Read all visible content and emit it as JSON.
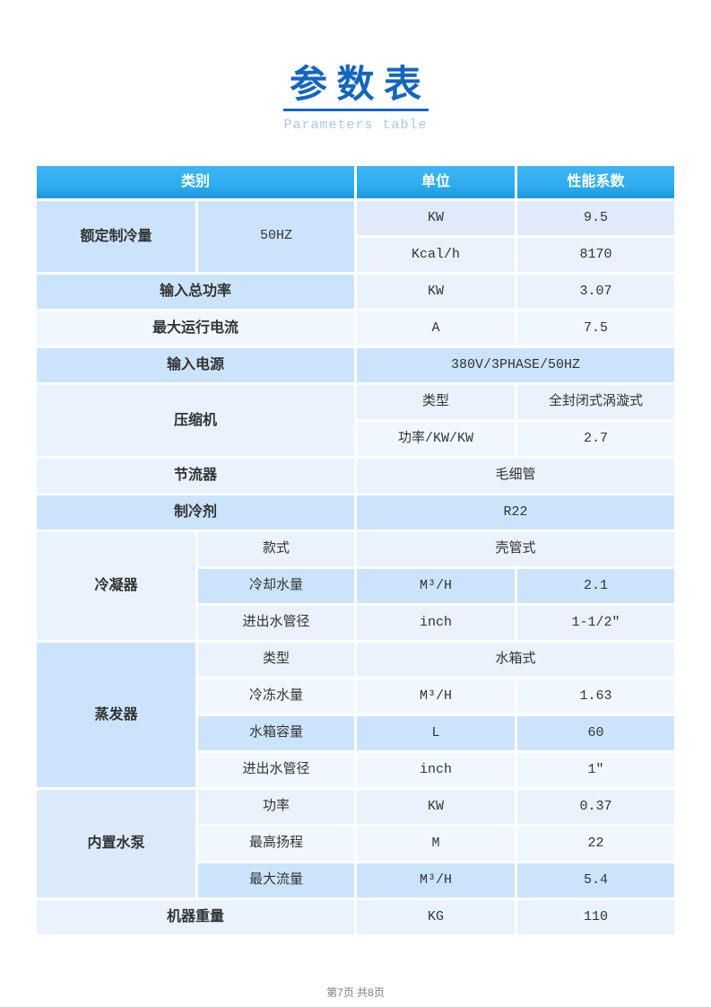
{
  "page": {
    "title": "参 数 表",
    "subtitle": "Parameters table",
    "footer": "第7页 共8页"
  },
  "colors": {
    "header_blue": "#2fadf0",
    "header_blue_light": "#3eb5f3",
    "header_blue_dark": "#1d97dc",
    "tint_medium": "#cce4fb",
    "tint_light": "#e9f2fd",
    "tint_xlight": "#f1f7fe",
    "tint_mlight": "#dfeafa",
    "tint_pump": "#dcebfc",
    "title_blue": "#1565c0",
    "subtitle_blue": "#a9c9e9",
    "text_dark": "#333333",
    "footer_gray": "#7e7e7e"
  },
  "table": {
    "header": {
      "category": "类别",
      "unit": "单位",
      "value": "性能系数"
    },
    "g1": {
      "label": "额定制冷量",
      "freq": "50HZ",
      "r1": {
        "unit": "KW",
        "value": "9.5"
      },
      "r2": {
        "unit": "Kcal/h",
        "value": "8170"
      }
    },
    "g2": {
      "label": "输入总功率",
      "unit": "KW",
      "value": "3.07"
    },
    "g3": {
      "label": "最大运行电流",
      "unit": "A",
      "value": "7.5"
    },
    "g4": {
      "label": "输入电源",
      "value": "380V/3PHASE/50HZ"
    },
    "g5": {
      "label": "压缩机",
      "r1": {
        "unit": "类型",
        "value": "全封闭式涡漩式"
      },
      "r2": {
        "unit": "功率/KW/KW",
        "value": "2.7"
      }
    },
    "g6": {
      "label": "节流器",
      "value": "毛细管"
    },
    "g7": {
      "label": "制冷剂",
      "value": "R22"
    },
    "g8": {
      "label": "冷凝器",
      "r1": {
        "sub": "款式",
        "value": "壳管式"
      },
      "r2": {
        "sub": "冷却水量",
        "unit": "M³/H",
        "value": "2.1"
      },
      "r3": {
        "sub": "进出水管径",
        "unit": "inch",
        "value": "1-1/2″"
      }
    },
    "g9": {
      "label": "蒸发器",
      "r1": {
        "sub": "类型",
        "value": "水箱式"
      },
      "r2": {
        "sub": "冷冻水量",
        "unit": "M³/H",
        "value": "1.63"
      },
      "r3": {
        "sub": "水箱容量",
        "unit": "L",
        "value": "60"
      },
      "r4": {
        "sub": "进出水管径",
        "unit": "inch",
        "value": "1″"
      }
    },
    "g10": {
      "label": "内置水泵",
      "r1": {
        "sub": "功率",
        "unit": "KW",
        "value": "0.37"
      },
      "r2": {
        "sub": "最高扬程",
        "unit": "M",
        "value": "22"
      },
      "r3": {
        "sub": "最大流量",
        "unit": "M³/H",
        "value": "5.4"
      }
    },
    "g11": {
      "label": "机器重量",
      "unit": "KG",
      "value": "110"
    }
  }
}
